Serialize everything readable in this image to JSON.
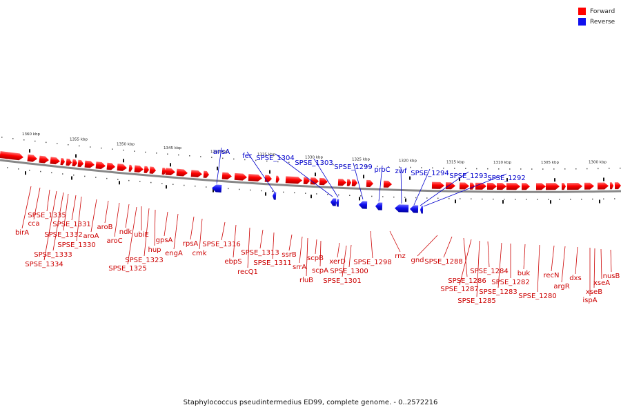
{
  "title": "Staphylococcus pseudintermedius ED99, complete genome. - 0..2572216",
  "colors": {
    "forward": "#ff0000",
    "reverse": "#1010ee",
    "forward_label": "#cc0000",
    "reverse_label": "#0000cc",
    "backbone": "#888888"
  },
  "legend": [
    {
      "label": "Forward",
      "color": "#ff0000"
    },
    {
      "label": "Reverse",
      "color": "#1010ee"
    }
  ],
  "scale": {
    "unit": "kbp",
    "ticks": [
      {
        "label": "1360 kbp",
        "pos": 1360
      },
      {
        "label": "1355 kbp",
        "pos": 1355
      },
      {
        "label": "1350 kbp",
        "pos": 1350
      },
      {
        "label": "1345 kbp",
        "pos": 1345
      },
      {
        "label": "1340 kbp",
        "pos": 1340
      },
      {
        "label": "1335 kbp",
        "pos": 1335
      },
      {
        "label": "1330 kbp",
        "pos": 1330
      },
      {
        "label": "1325 kbp",
        "pos": 1325
      },
      {
        "label": "1320 kbp",
        "pos": 1320
      },
      {
        "label": "1315 kbp",
        "pos": 1315
      },
      {
        "label": "1310 kbp",
        "pos": 1310
      },
      {
        "label": "1305 kbp",
        "pos": 1305
      },
      {
        "label": "1300 kbp",
        "pos": 1300
      }
    ]
  },
  "reverse_genes": [
    {
      "name": "ansA"
    },
    {
      "name": "fer"
    },
    {
      "name": "SPSE_1304"
    },
    {
      "name": "SPSE_1303"
    },
    {
      "name": "SPSE_1299"
    },
    {
      "name": "proC"
    },
    {
      "name": "zwf"
    },
    {
      "name": "SPSE_1294"
    },
    {
      "name": "SPSE_1293"
    },
    {
      "name": "SPSE_1292"
    }
  ],
  "forward_genes": [
    {
      "name": "birA"
    },
    {
      "name": "cca"
    },
    {
      "name": "SPSE_1335"
    },
    {
      "name": "SPSE_1334"
    },
    {
      "name": "SPSE_1333"
    },
    {
      "name": "SPSE_1332"
    },
    {
      "name": "SPSE_1331"
    },
    {
      "name": "SPSE_1330"
    },
    {
      "name": "aroA"
    },
    {
      "name": "aroB"
    },
    {
      "name": "aroC"
    },
    {
      "name": "ndk"
    },
    {
      "name": "SPSE_1325"
    },
    {
      "name": "ubiE"
    },
    {
      "name": "SPSE_1323"
    },
    {
      "name": "hup"
    },
    {
      "name": "gpsA"
    },
    {
      "name": "engA"
    },
    {
      "name": "rpsA"
    },
    {
      "name": "cmk"
    },
    {
      "name": "SPSE_1316"
    },
    {
      "name": "ebpS"
    },
    {
      "name": "recQ1"
    },
    {
      "name": "SPSE_1313"
    },
    {
      "name": "SPSE_1311"
    },
    {
      "name": "ssrB"
    },
    {
      "name": "srrA"
    },
    {
      "name": "rluB"
    },
    {
      "name": "scpB"
    },
    {
      "name": "scpA"
    },
    {
      "name": "xerD"
    },
    {
      "name": "SPSE_1300"
    },
    {
      "name": "SPSE_1301"
    },
    {
      "name": "SPSE_1298"
    },
    {
      "name": "rnz"
    },
    {
      "name": "gnd"
    },
    {
      "name": "SPSE_1288"
    },
    {
      "name": "SPSE_1286"
    },
    {
      "name": "SPSE_1287"
    },
    {
      "name": "SPSE_1285"
    },
    {
      "name": "SPSE_1284"
    },
    {
      "name": "SPSE_1283"
    },
    {
      "name": "SPSE_1282"
    },
    {
      "name": "buk"
    },
    {
      "name": "SPSE_1280"
    },
    {
      "name": "recN"
    },
    {
      "name": "argR"
    },
    {
      "name": "dxs"
    },
    {
      "name": "ispA"
    },
    {
      "name": "xseB"
    },
    {
      "name": "xseA"
    },
    {
      "name": "nusB"
    }
  ]
}
